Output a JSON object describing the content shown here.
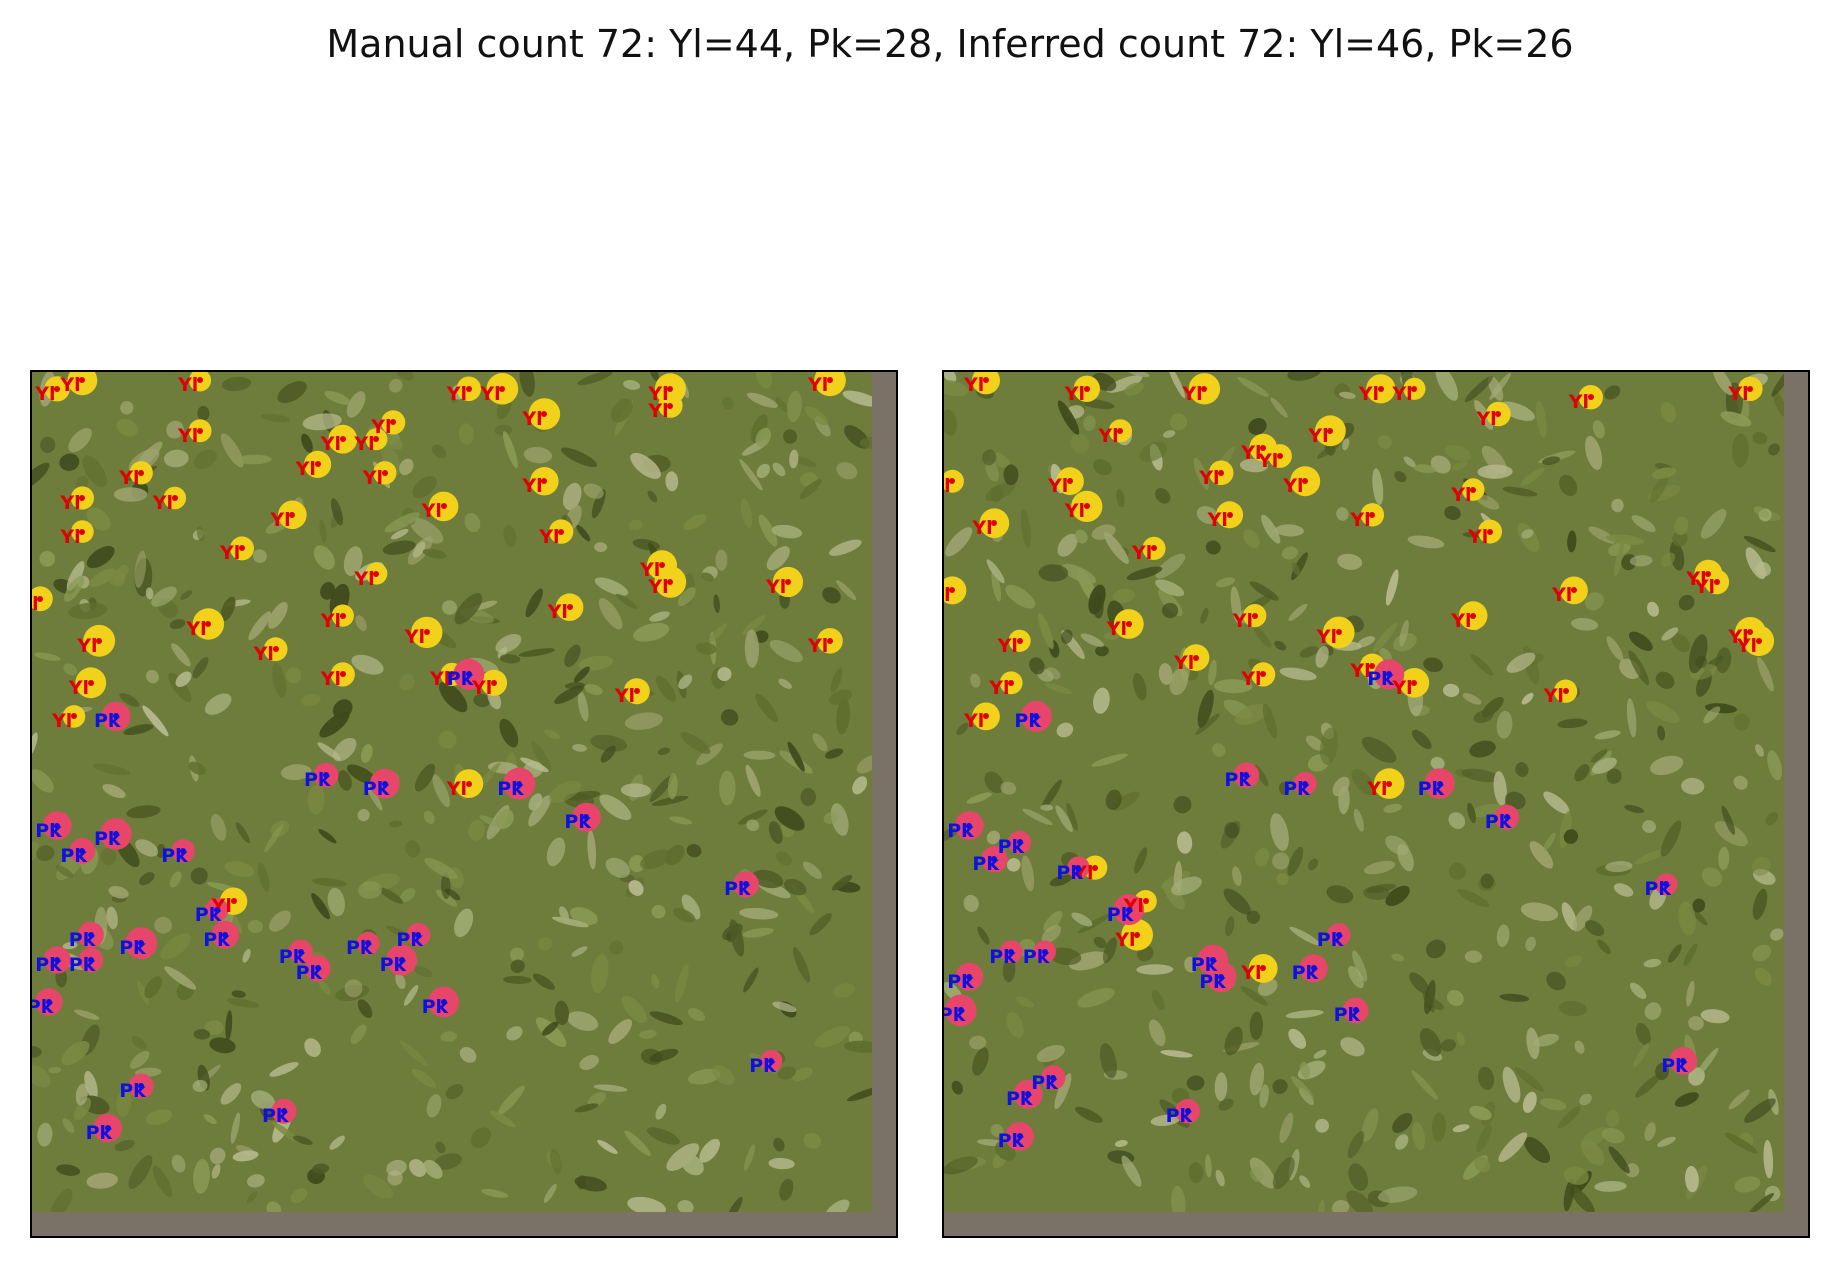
{
  "title": "Manual count  72: Yl=44, Pk=28, Inferred count 72: Yl=46, Pk=26",
  "colors": {
    "yellow_label": "#e00000",
    "yellow_dot": "#e00000",
    "pink_label": "#1010e0",
    "pink_dot": "#1010e0",
    "background_padding": "#7a7266",
    "foliage_base": "#6f7d3c",
    "flower_yellow": "#f2d11a",
    "flower_pink": "#e8456a"
  },
  "class_labels": {
    "yellow": "Yl",
    "pink": "Pk"
  },
  "panels": [
    {
      "id": "manual",
      "markers": [
        {
          "c": "yellow",
          "x": 0.03,
          "y": 0.02
        },
        {
          "c": "yellow",
          "x": 0.06,
          "y": 0.01
        },
        {
          "c": "yellow",
          "x": 0.2,
          "y": 0.01
        },
        {
          "c": "yellow",
          "x": 0.52,
          "y": 0.02
        },
        {
          "c": "yellow",
          "x": 0.56,
          "y": 0.02
        },
        {
          "c": "yellow",
          "x": 0.76,
          "y": 0.02
        },
        {
          "c": "yellow",
          "x": 0.76,
          "y": 0.04
        },
        {
          "c": "yellow",
          "x": 0.95,
          "y": 0.01
        },
        {
          "c": "yellow",
          "x": 0.2,
          "y": 0.07
        },
        {
          "c": "yellow",
          "x": 0.37,
          "y": 0.08
        },
        {
          "c": "yellow",
          "x": 0.43,
          "y": 0.06
        },
        {
          "c": "yellow",
          "x": 0.41,
          "y": 0.08
        },
        {
          "c": "yellow",
          "x": 0.61,
          "y": 0.05
        },
        {
          "c": "yellow",
          "x": 0.13,
          "y": 0.12
        },
        {
          "c": "yellow",
          "x": 0.17,
          "y": 0.15
        },
        {
          "c": "yellow",
          "x": 0.34,
          "y": 0.11
        },
        {
          "c": "yellow",
          "x": 0.42,
          "y": 0.12
        },
        {
          "c": "yellow",
          "x": 0.31,
          "y": 0.17
        },
        {
          "c": "yellow",
          "x": 0.49,
          "y": 0.16
        },
        {
          "c": "yellow",
          "x": 0.61,
          "y": 0.13
        },
        {
          "c": "yellow",
          "x": 0.63,
          "y": 0.19
        },
        {
          "c": "yellow",
          "x": 0.06,
          "y": 0.15
        },
        {
          "c": "yellow",
          "x": 0.06,
          "y": 0.19
        },
        {
          "c": "yellow",
          "x": 0.25,
          "y": 0.21
        },
        {
          "c": "yellow",
          "x": 0.41,
          "y": 0.24
        },
        {
          "c": "yellow",
          "x": 0.75,
          "y": 0.23
        },
        {
          "c": "yellow",
          "x": 0.76,
          "y": 0.25
        },
        {
          "c": "yellow",
          "x": 0.9,
          "y": 0.25
        },
        {
          "c": "yellow",
          "x": 0.01,
          "y": 0.27
        },
        {
          "c": "yellow",
          "x": 0.21,
          "y": 0.3
        },
        {
          "c": "yellow",
          "x": 0.37,
          "y": 0.29
        },
        {
          "c": "yellow",
          "x": 0.47,
          "y": 0.31
        },
        {
          "c": "yellow",
          "x": 0.64,
          "y": 0.28
        },
        {
          "c": "yellow",
          "x": 0.08,
          "y": 0.32
        },
        {
          "c": "yellow",
          "x": 0.29,
          "y": 0.33
        },
        {
          "c": "yellow",
          "x": 0.37,
          "y": 0.36
        },
        {
          "c": "yellow",
          "x": 0.5,
          "y": 0.36
        },
        {
          "c": "yellow",
          "x": 0.55,
          "y": 0.37
        },
        {
          "c": "yellow",
          "x": 0.95,
          "y": 0.32
        },
        {
          "c": "yellow",
          "x": 0.07,
          "y": 0.37
        },
        {
          "c": "yellow",
          "x": 0.05,
          "y": 0.41
        },
        {
          "c": "yellow",
          "x": 0.72,
          "y": 0.38
        },
        {
          "c": "yellow",
          "x": 0.52,
          "y": 0.49
        },
        {
          "c": "yellow",
          "x": 0.24,
          "y": 0.63
        },
        {
          "c": "pink",
          "x": 0.1,
          "y": 0.41
        },
        {
          "c": "pink",
          "x": 0.52,
          "y": 0.36
        },
        {
          "c": "pink",
          "x": 0.35,
          "y": 0.48
        },
        {
          "c": "pink",
          "x": 0.42,
          "y": 0.49
        },
        {
          "c": "pink",
          "x": 0.58,
          "y": 0.49
        },
        {
          "c": "pink",
          "x": 0.03,
          "y": 0.54
        },
        {
          "c": "pink",
          "x": 0.1,
          "y": 0.55
        },
        {
          "c": "pink",
          "x": 0.06,
          "y": 0.57
        },
        {
          "c": "pink",
          "x": 0.18,
          "y": 0.57
        },
        {
          "c": "pink",
          "x": 0.66,
          "y": 0.53
        },
        {
          "c": "pink",
          "x": 0.85,
          "y": 0.61
        },
        {
          "c": "pink",
          "x": 0.22,
          "y": 0.64
        },
        {
          "c": "pink",
          "x": 0.07,
          "y": 0.67
        },
        {
          "c": "pink",
          "x": 0.23,
          "y": 0.67
        },
        {
          "c": "pink",
          "x": 0.13,
          "y": 0.68
        },
        {
          "c": "pink",
          "x": 0.03,
          "y": 0.7
        },
        {
          "c": "pink",
          "x": 0.07,
          "y": 0.7
        },
        {
          "c": "pink",
          "x": 0.32,
          "y": 0.69
        },
        {
          "c": "pink",
          "x": 0.34,
          "y": 0.71
        },
        {
          "c": "pink",
          "x": 0.44,
          "y": 0.7
        },
        {
          "c": "pink",
          "x": 0.46,
          "y": 0.67
        },
        {
          "c": "pink",
          "x": 0.02,
          "y": 0.75
        },
        {
          "c": "pink",
          "x": 0.49,
          "y": 0.75
        },
        {
          "c": "pink",
          "x": 0.13,
          "y": 0.85
        },
        {
          "c": "pink",
          "x": 0.3,
          "y": 0.88
        },
        {
          "c": "pink",
          "x": 0.09,
          "y": 0.9
        },
        {
          "c": "pink",
          "x": 0.88,
          "y": 0.82
        },
        {
          "c": "pink",
          "x": 0.4,
          "y": 0.68
        }
      ]
    },
    {
      "id": "inferred",
      "markers": [
        {
          "c": "yellow",
          "x": 0.05,
          "y": 0.01
        },
        {
          "c": "yellow",
          "x": 0.17,
          "y": 0.02
        },
        {
          "c": "yellow",
          "x": 0.31,
          "y": 0.02
        },
        {
          "c": "yellow",
          "x": 0.52,
          "y": 0.02
        },
        {
          "c": "yellow",
          "x": 0.56,
          "y": 0.02
        },
        {
          "c": "yellow",
          "x": 0.77,
          "y": 0.03
        },
        {
          "c": "yellow",
          "x": 0.96,
          "y": 0.02
        },
        {
          "c": "yellow",
          "x": 0.21,
          "y": 0.07
        },
        {
          "c": "yellow",
          "x": 0.46,
          "y": 0.07
        },
        {
          "c": "yellow",
          "x": 0.38,
          "y": 0.09
        },
        {
          "c": "yellow",
          "x": 0.4,
          "y": 0.1
        },
        {
          "c": "yellow",
          "x": 0.66,
          "y": 0.05
        },
        {
          "c": "yellow",
          "x": 0.01,
          "y": 0.13
        },
        {
          "c": "yellow",
          "x": 0.15,
          "y": 0.13
        },
        {
          "c": "yellow",
          "x": 0.43,
          "y": 0.13
        },
        {
          "c": "yellow",
          "x": 0.33,
          "y": 0.12
        },
        {
          "c": "yellow",
          "x": 0.06,
          "y": 0.18
        },
        {
          "c": "yellow",
          "x": 0.17,
          "y": 0.16
        },
        {
          "c": "yellow",
          "x": 0.34,
          "y": 0.17
        },
        {
          "c": "yellow",
          "x": 0.51,
          "y": 0.17
        },
        {
          "c": "yellow",
          "x": 0.63,
          "y": 0.14
        },
        {
          "c": "yellow",
          "x": 0.65,
          "y": 0.19
        },
        {
          "c": "yellow",
          "x": 0.25,
          "y": 0.21
        },
        {
          "c": "yellow",
          "x": 0.01,
          "y": 0.26
        },
        {
          "c": "yellow",
          "x": 0.22,
          "y": 0.3
        },
        {
          "c": "yellow",
          "x": 0.37,
          "y": 0.29
        },
        {
          "c": "yellow",
          "x": 0.47,
          "y": 0.31
        },
        {
          "c": "yellow",
          "x": 0.63,
          "y": 0.29
        },
        {
          "c": "yellow",
          "x": 0.75,
          "y": 0.26
        },
        {
          "c": "yellow",
          "x": 0.91,
          "y": 0.24
        },
        {
          "c": "yellow",
          "x": 0.92,
          "y": 0.25
        },
        {
          "c": "yellow",
          "x": 0.96,
          "y": 0.31
        },
        {
          "c": "yellow",
          "x": 0.97,
          "y": 0.32
        },
        {
          "c": "yellow",
          "x": 0.09,
          "y": 0.32
        },
        {
          "c": "yellow",
          "x": 0.3,
          "y": 0.34
        },
        {
          "c": "yellow",
          "x": 0.38,
          "y": 0.36
        },
        {
          "c": "yellow",
          "x": 0.51,
          "y": 0.35
        },
        {
          "c": "yellow",
          "x": 0.56,
          "y": 0.37
        },
        {
          "c": "yellow",
          "x": 0.08,
          "y": 0.37
        },
        {
          "c": "yellow",
          "x": 0.05,
          "y": 0.41
        },
        {
          "c": "yellow",
          "x": 0.74,
          "y": 0.38
        },
        {
          "c": "yellow",
          "x": 0.53,
          "y": 0.49
        },
        {
          "c": "yellow",
          "x": 0.18,
          "y": 0.59
        },
        {
          "c": "yellow",
          "x": 0.24,
          "y": 0.63
        },
        {
          "c": "yellow",
          "x": 0.23,
          "y": 0.67
        },
        {
          "c": "yellow",
          "x": 0.38,
          "y": 0.71
        },
        {
          "c": "pink",
          "x": 0.11,
          "y": 0.41
        },
        {
          "c": "pink",
          "x": 0.53,
          "y": 0.36
        },
        {
          "c": "pink",
          "x": 0.36,
          "y": 0.48
        },
        {
          "c": "pink",
          "x": 0.43,
          "y": 0.49
        },
        {
          "c": "pink",
          "x": 0.59,
          "y": 0.49
        },
        {
          "c": "pink",
          "x": 0.03,
          "y": 0.54
        },
        {
          "c": "pink",
          "x": 0.09,
          "y": 0.56
        },
        {
          "c": "pink",
          "x": 0.06,
          "y": 0.58
        },
        {
          "c": "pink",
          "x": 0.16,
          "y": 0.59
        },
        {
          "c": "pink",
          "x": 0.67,
          "y": 0.53
        },
        {
          "c": "pink",
          "x": 0.86,
          "y": 0.61
        },
        {
          "c": "pink",
          "x": 0.22,
          "y": 0.64
        },
        {
          "c": "pink",
          "x": 0.08,
          "y": 0.69
        },
        {
          "c": "pink",
          "x": 0.12,
          "y": 0.69
        },
        {
          "c": "pink",
          "x": 0.03,
          "y": 0.72
        },
        {
          "c": "pink",
          "x": 0.32,
          "y": 0.7
        },
        {
          "c": "pink",
          "x": 0.33,
          "y": 0.72
        },
        {
          "c": "pink",
          "x": 0.44,
          "y": 0.71
        },
        {
          "c": "pink",
          "x": 0.47,
          "y": 0.67
        },
        {
          "c": "pink",
          "x": 0.02,
          "y": 0.76
        },
        {
          "c": "pink",
          "x": 0.49,
          "y": 0.76
        },
        {
          "c": "pink",
          "x": 0.13,
          "y": 0.84
        },
        {
          "c": "pink",
          "x": 0.1,
          "y": 0.86
        },
        {
          "c": "pink",
          "x": 0.29,
          "y": 0.88
        },
        {
          "c": "pink",
          "x": 0.09,
          "y": 0.91
        },
        {
          "c": "pink",
          "x": 0.88,
          "y": 0.82
        }
      ]
    }
  ]
}
